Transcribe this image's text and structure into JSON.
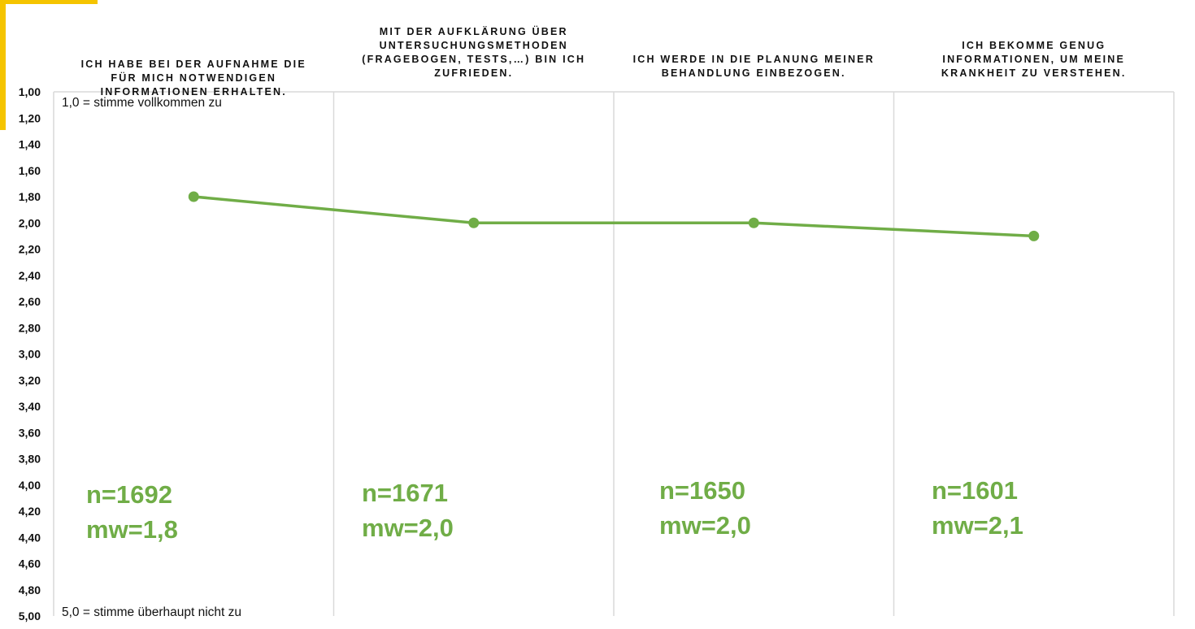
{
  "colors": {
    "accent": "#f5c400",
    "series": "#70ad47",
    "grid": "#d9d9d9"
  },
  "chart_data": {
    "type": "line",
    "categories": [
      "ICH HABE BEI DER AUFNAHME DIE\nFÜR MICH NOTWENDIGEN\nINFORMATIONEN ERHALTEN.",
      "MIT DER AUFKLÄRUNG ÜBER\nUNTERSUCHUNGSMETHODEN\n(FRAGEBOGEN, TESTS,…) BIN ICH\nZUFRIEDEN.",
      "ICH WERDE IN DIE PLANUNG MEINER\nBEHANDLUNG EINBEZOGEN.",
      "ICH BEKOMME GENUG\nINFORMATIONEN, UM MEINE\nKRANKHEIT ZU VERSTEHEN."
    ],
    "values": [
      1.8,
      2.0,
      2.0,
      2.1
    ],
    "ylim": [
      1.0,
      5.0
    ],
    "y_inverted": true,
    "yticks": [
      "1,00",
      "1,20",
      "1,40",
      "1,60",
      "1,80",
      "2,00",
      "2,20",
      "2,40",
      "2,60",
      "2,80",
      "3,00",
      "3,20",
      "3,40",
      "3,60",
      "3,80",
      "4,00",
      "4,20",
      "4,40",
      "4,60",
      "4,80",
      "5,00"
    ],
    "grid": "vertical",
    "annotations": {
      "top": "1,0 = stimme vollkommen zu",
      "bottom": "5,0 = stimme überhaupt nicht zu"
    },
    "stats": [
      {
        "n": "n=1692",
        "mw": "mw=1,8"
      },
      {
        "n": "n=1671",
        "mw": "mw=2,0"
      },
      {
        "n": "n=1650",
        "mw": "mw=2,0"
      },
      {
        "n": "n=1601",
        "mw": "mw=2,1"
      }
    ]
  }
}
